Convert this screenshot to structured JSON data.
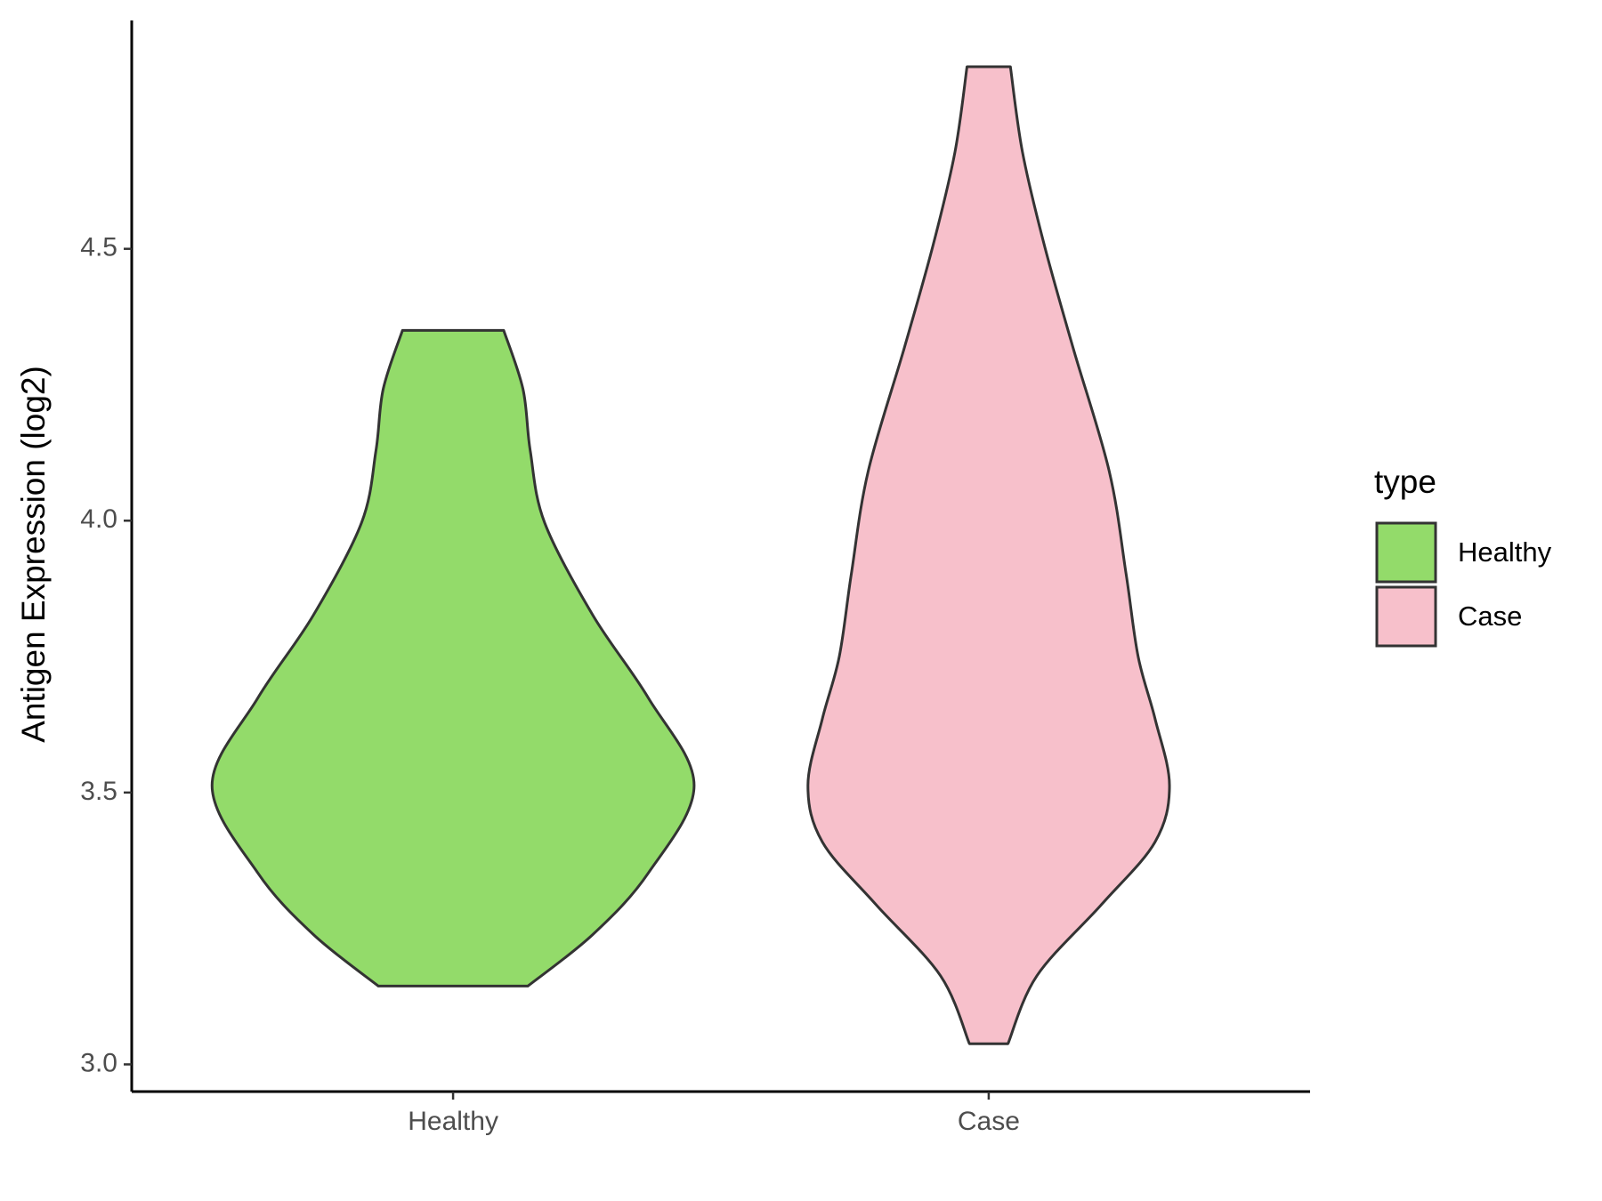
{
  "chart_data": {
    "type": "violin",
    "y_label": "Antigen Expression (log2)",
    "legend_title": "type",
    "legend": "right",
    "categories": [
      "Healthy",
      "Case"
    ],
    "series": [
      {
        "name": "Healthy",
        "color": "#93DB6A",
        "y": [
          4.35,
          4.242,
          4.129,
          3.996,
          3.826,
          3.674,
          3.513,
          3.352,
          3.239,
          3.144
        ],
        "density": [
          0.21,
          0.29,
          0.32,
          0.38,
          0.58,
          0.81,
          1.0,
          0.81,
          0.58,
          0.31
        ]
      },
      {
        "name": "Case",
        "color": "#F7C0CB",
        "y": [
          4.835,
          4.678,
          4.508,
          4.318,
          4.091,
          3.902,
          3.75,
          3.636,
          3.513,
          3.409,
          3.295,
          3.163,
          3.038
        ],
        "density": [
          0.09,
          0.14,
          0.23,
          0.35,
          0.5,
          0.57,
          0.62,
          0.69,
          0.75,
          0.69,
          0.47,
          0.2,
          0.08
        ]
      }
    ],
    "ylim": [
      2.95,
      4.92
    ],
    "yticks": [
      {
        "value": 3,
        "label": "3.0"
      },
      3.5,
      {
        "value": 4,
        "label": "4.0"
      },
      4.5
    ],
    "grid": false
  }
}
